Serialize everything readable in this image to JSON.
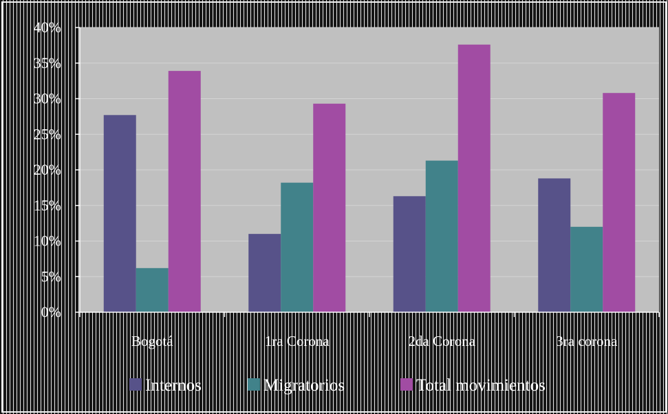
{
  "chart_data": {
    "type": "bar",
    "categories": [
      "Bogotá",
      "1ra Corona",
      "2da Corona",
      "3ra corona"
    ],
    "series": [
      {
        "name": "Internos",
        "color": "#575289",
        "values": [
          27.7,
          11.0,
          16.3,
          18.8
        ]
      },
      {
        "name": "Migratorios",
        "color": "#41828a",
        "values": [
          6.2,
          18.2,
          21.3,
          12.0
        ]
      },
      {
        "name": "Total movimientos",
        "color": "#a14ca3",
        "values": [
          33.9,
          29.3,
          37.6,
          30.8
        ]
      }
    ],
    "yticks": [
      "0%",
      "5%",
      "10%",
      "15%",
      "20%",
      "25%",
      "30%",
      "35%",
      "40%"
    ],
    "ylim": [
      0,
      40
    ],
    "grid": true,
    "legend_position": "bottom",
    "plot_background": "#c0c0c0"
  }
}
